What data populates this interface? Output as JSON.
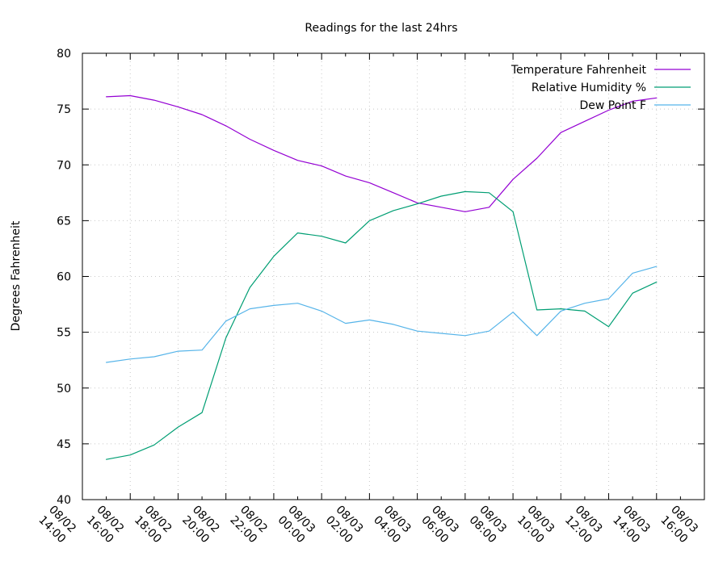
{
  "chart_data": {
    "type": "line",
    "title": "Readings for the last 24hrs",
    "xlabel": "",
    "ylabel": "Degrees Fahrenheit",
    "ylim": [
      40,
      80
    ],
    "yticks": [
      40,
      45,
      50,
      55,
      60,
      65,
      70,
      75,
      80
    ],
    "xlim": [
      "08/02 14:00",
      "08/03 16:00"
    ],
    "xticks": [
      {
        "date": "08/02",
        "time": "14:00"
      },
      {
        "date": "08/02",
        "time": "16:00"
      },
      {
        "date": "08/02",
        "time": "18:00"
      },
      {
        "date": "08/02",
        "time": "20:00"
      },
      {
        "date": "08/02",
        "time": "22:00"
      },
      {
        "date": "08/03",
        "time": "00:00"
      },
      {
        "date": "08/03",
        "time": "02:00"
      },
      {
        "date": "08/03",
        "time": "04:00"
      },
      {
        "date": "08/03",
        "time": "06:00"
      },
      {
        "date": "08/03",
        "time": "08:00"
      },
      {
        "date": "08/03",
        "time": "10:00"
      },
      {
        "date": "08/03",
        "time": "12:00"
      },
      {
        "date": "08/03",
        "time": "14:00"
      },
      {
        "date": "08/03",
        "time": "16:00"
      }
    ],
    "x": [
      "08/02 15:00",
      "08/02 16:00",
      "08/02 17:00",
      "08/02 18:00",
      "08/02 19:00",
      "08/02 20:00",
      "08/02 21:00",
      "08/02 22:00",
      "08/02 23:00",
      "08/03 00:00",
      "08/03 01:00",
      "08/03 02:00",
      "08/03 03:00",
      "08/03 04:00",
      "08/03 05:00",
      "08/03 06:00",
      "08/03 07:00",
      "08/03 08:00",
      "08/03 09:00",
      "08/03 10:00",
      "08/03 11:00",
      "08/03 12:00",
      "08/03 13:00",
      "08/03 14:00"
    ],
    "grid": true,
    "legend_position": "top-right",
    "series": [
      {
        "name": "Temperature Fahrenheit",
        "color": "#9400d3",
        "values": [
          76.1,
          76.2,
          75.8,
          75.2,
          74.5,
          73.5,
          72.3,
          71.3,
          70.4,
          69.9,
          69.0,
          68.4,
          67.5,
          66.6,
          66.2,
          65.8,
          66.2,
          68.7,
          70.6,
          72.9,
          73.9,
          74.9,
          75.7,
          76.0
        ]
      },
      {
        "name": "Relative Humidity %",
        "color": "#009e73",
        "values": [
          43.6,
          44.0,
          44.9,
          46.5,
          47.8,
          54.5,
          59.0,
          61.8,
          63.9,
          63.6,
          63.0,
          65.0,
          65.9,
          66.5,
          67.2,
          67.6,
          67.5,
          65.8,
          57.0,
          57.1,
          56.9,
          55.5,
          58.5,
          59.5
        ]
      },
      {
        "name": "Dew Point F",
        "color": "#56b4e9",
        "values": [
          52.3,
          52.6,
          52.8,
          53.3,
          53.4,
          56.0,
          57.1,
          57.4,
          57.6,
          56.9,
          55.8,
          56.1,
          55.7,
          55.1,
          54.9,
          54.7,
          55.1,
          56.8,
          54.7,
          56.9,
          57.6,
          58.0,
          60.3,
          60.9
        ]
      }
    ]
  }
}
